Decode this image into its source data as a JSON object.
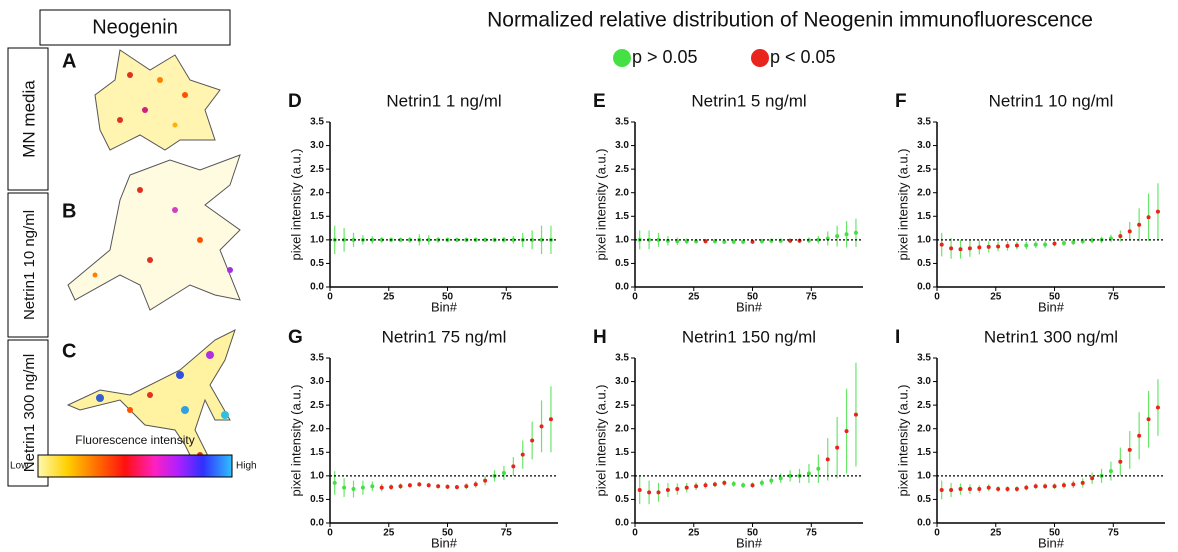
{
  "figure": {
    "title": "Normalized relative distribution of Neogenin immunofluorescence",
    "legend": [
      {
        "label": "p > 0.05",
        "color": "#44e044"
      },
      {
        "label": "p < 0.05",
        "color": "#e8241c"
      }
    ],
    "left": {
      "title": "Neogenin",
      "rows": [
        {
          "label": "MN media",
          "letter": "A"
        },
        {
          "label": "Netrin1 10 ng/ml",
          "letter": "B"
        },
        {
          "label": "Netrin1 300 ng/ml",
          "letter": "C"
        }
      ],
      "colorbar": {
        "title": "Fluorescence intensity",
        "low": "Low",
        "high": "High"
      }
    }
  },
  "chart_data": [
    {
      "type": "scatter",
      "letter": "D",
      "title": "Netrin1 1 ng/ml",
      "xlabel": "Bin#",
      "ylabel": "pixel intensity (a.u.)",
      "xlim": [
        0,
        97
      ],
      "ylim": [
        0,
        3.5
      ],
      "xticks": [
        0,
        25,
        50,
        75
      ],
      "yticks": [
        {
          "value": 0,
          "label": "0.0"
        },
        {
          "value": 0.5,
          "label": "0.5"
        },
        {
          "value": 1,
          "label": "1.0"
        },
        {
          "value": 1.5,
          "label": "1.5"
        },
        {
          "value": 2,
          "label": "2.0"
        },
        {
          "value": 2.5,
          "label": "2.5"
        },
        {
          "value": 3,
          "label": "3.0"
        },
        {
          "value": 3.5,
          "label": "3.5"
        }
      ],
      "hline": 1,
      "x": [
        2,
        6,
        10,
        14,
        18,
        22,
        26,
        30,
        34,
        38,
        42,
        46,
        50,
        54,
        58,
        62,
        66,
        70,
        74,
        78,
        82,
        86,
        90,
        94
      ],
      "values": [
        1,
        1,
        1,
        1,
        1,
        1,
        1,
        1,
        1,
        1,
        1,
        1,
        1,
        1,
        1,
        1,
        1,
        1,
        1,
        1,
        1,
        1,
        1,
        1
      ],
      "errors": [
        0.3,
        0.25,
        0.15,
        0.1,
        0.08,
        0.06,
        0.05,
        0.05,
        0.06,
        0.12,
        0.1,
        0.06,
        0.05,
        0.05,
        0.05,
        0.05,
        0.05,
        0.05,
        0.06,
        0.08,
        0.15,
        0.2,
        0.3,
        0.3
      ],
      "significant": [
        false,
        false,
        false,
        false,
        false,
        false,
        false,
        false,
        false,
        false,
        false,
        false,
        false,
        false,
        false,
        false,
        false,
        false,
        false,
        false,
        false,
        false,
        false,
        false
      ]
    },
    {
      "type": "scatter",
      "letter": "E",
      "title": "Netrin1 5 ng/ml",
      "xlabel": "Bin#",
      "ylabel": "pixel intensity (a.u.)",
      "xlim": [
        0,
        97
      ],
      "ylim": [
        0,
        3.5
      ],
      "xticks": [
        0,
        25,
        50,
        75
      ],
      "yticks": [
        {
          "value": 0,
          "label": "0.0"
        },
        {
          "value": 0.5,
          "label": "0.5"
        },
        {
          "value": 1,
          "label": "1.0"
        },
        {
          "value": 1.5,
          "label": "1.5"
        },
        {
          "value": 2,
          "label": "2.0"
        },
        {
          "value": 2.5,
          "label": "2.5"
        },
        {
          "value": 3,
          "label": "3.0"
        },
        {
          "value": 3.5,
          "label": "3.5"
        }
      ],
      "hline": 1,
      "x": [
        2,
        6,
        10,
        14,
        18,
        22,
        26,
        30,
        34,
        38,
        42,
        46,
        50,
        54,
        58,
        62,
        66,
        70,
        74,
        78,
        82,
        86,
        90,
        94
      ],
      "values": [
        1,
        1,
        1,
        0.98,
        0.97,
        0.97,
        0.97,
        0.97,
        0.97,
        0.96,
        0.96,
        0.96,
        0.96,
        0.97,
        0.98,
        0.98,
        0.98,
        0.98,
        0.99,
        1.0,
        1.03,
        1.08,
        1.12,
        1.15
      ],
      "errors": [
        0.2,
        0.2,
        0.15,
        0.1,
        0.08,
        0.06,
        0.05,
        0.05,
        0.05,
        0.05,
        0.05,
        0.05,
        0.05,
        0.05,
        0.05,
        0.05,
        0.05,
        0.05,
        0.06,
        0.08,
        0.15,
        0.22,
        0.28,
        0.3
      ],
      "significant": [
        false,
        false,
        false,
        false,
        false,
        false,
        false,
        true,
        false,
        false,
        false,
        false,
        true,
        false,
        false,
        false,
        true,
        true,
        false,
        false,
        false,
        false,
        false,
        false
      ]
    },
    {
      "type": "scatter",
      "letter": "F",
      "title": "Netrin1 10 ng/ml",
      "xlabel": "Bin#",
      "ylabel": "pixel intensity (a.u.)",
      "xlim": [
        0,
        97
      ],
      "ylim": [
        0,
        3.5
      ],
      "xticks": [
        0,
        25,
        50,
        75
      ],
      "yticks": [
        {
          "value": 0,
          "label": "0.0"
        },
        {
          "value": 0.5,
          "label": "0.5"
        },
        {
          "value": 1,
          "label": "1.0"
        },
        {
          "value": 1.5,
          "label": "1.5"
        },
        {
          "value": 2,
          "label": "2.0"
        },
        {
          "value": 2.5,
          "label": "2.5"
        },
        {
          "value": 3,
          "label": "3.0"
        },
        {
          "value": 3.5,
          "label": "3.5"
        }
      ],
      "hline": 1,
      "x": [
        2,
        6,
        10,
        14,
        18,
        22,
        26,
        30,
        34,
        38,
        42,
        46,
        50,
        54,
        58,
        62,
        66,
        70,
        74,
        78,
        82,
        86,
        90,
        94
      ],
      "values": [
        0.9,
        0.82,
        0.8,
        0.82,
        0.84,
        0.85,
        0.86,
        0.87,
        0.88,
        0.88,
        0.9,
        0.9,
        0.92,
        0.93,
        0.95,
        0.97,
        0.99,
        1.0,
        1.03,
        1.08,
        1.18,
        1.32,
        1.48,
        1.6
      ],
      "errors": [
        0.25,
        0.22,
        0.2,
        0.18,
        0.15,
        0.12,
        0.1,
        0.1,
        0.08,
        0.08,
        0.07,
        0.07,
        0.06,
        0.06,
        0.06,
        0.06,
        0.06,
        0.07,
        0.08,
        0.12,
        0.2,
        0.35,
        0.5,
        0.6
      ],
      "significant": [
        true,
        true,
        true,
        true,
        true,
        true,
        true,
        true,
        true,
        false,
        false,
        false,
        true,
        false,
        false,
        false,
        false,
        false,
        false,
        true,
        true,
        true,
        true,
        true
      ]
    },
    {
      "type": "scatter",
      "letter": "G",
      "title": "Netrin1 75 ng/ml",
      "xlabel": "Bin#",
      "ylabel": "pixel intensity (a.u.)",
      "xlim": [
        0,
        97
      ],
      "ylim": [
        0,
        3.5
      ],
      "xticks": [
        0,
        25,
        50,
        75
      ],
      "yticks": [
        {
          "value": 0,
          "label": "0.0"
        },
        {
          "value": 0.5,
          "label": "0.5"
        },
        {
          "value": 1,
          "label": "1.0"
        },
        {
          "value": 1.5,
          "label": "1.5"
        },
        {
          "value": 2,
          "label": "2.0"
        },
        {
          "value": 2.5,
          "label": "2.5"
        },
        {
          "value": 3,
          "label": "3.0"
        },
        {
          "value": 3.5,
          "label": "3.5"
        }
      ],
      "hline": 1,
      "x": [
        2,
        6,
        10,
        14,
        18,
        22,
        26,
        30,
        34,
        38,
        42,
        46,
        50,
        54,
        58,
        62,
        66,
        70,
        74,
        78,
        82,
        86,
        90,
        94
      ],
      "values": [
        0.85,
        0.75,
        0.72,
        0.75,
        0.78,
        0.75,
        0.76,
        0.78,
        0.8,
        0.82,
        0.8,
        0.78,
        0.77,
        0.76,
        0.78,
        0.82,
        0.9,
        1.0,
        1.06,
        1.2,
        1.45,
        1.75,
        2.05,
        2.2
      ],
      "errors": [
        0.25,
        0.2,
        0.18,
        0.15,
        0.1,
        0.08,
        0.06,
        0.06,
        0.05,
        0.05,
        0.05,
        0.05,
        0.05,
        0.05,
        0.06,
        0.07,
        0.1,
        0.12,
        0.15,
        0.2,
        0.3,
        0.4,
        0.55,
        0.7
      ],
      "significant": [
        false,
        false,
        false,
        false,
        false,
        true,
        true,
        true,
        true,
        true,
        true,
        true,
        true,
        true,
        true,
        true,
        true,
        false,
        false,
        true,
        true,
        true,
        true,
        true
      ]
    },
    {
      "type": "scatter",
      "letter": "H",
      "title": "Netrin1 150 ng/ml",
      "xlabel": "Bin#",
      "ylabel": "pixel intensity (a.u.)",
      "xlim": [
        0,
        97
      ],
      "ylim": [
        0,
        3.5
      ],
      "xticks": [
        0,
        25,
        50,
        75
      ],
      "yticks": [
        {
          "value": 0,
          "label": "0.0"
        },
        {
          "value": 0.5,
          "label": "0.5"
        },
        {
          "value": 1,
          "label": "1.0"
        },
        {
          "value": 1.5,
          "label": "1.5"
        },
        {
          "value": 2,
          "label": "2.0"
        },
        {
          "value": 2.5,
          "label": "2.5"
        },
        {
          "value": 3,
          "label": "3.0"
        },
        {
          "value": 3.5,
          "label": "3.5"
        }
      ],
      "hline": 1,
      "x": [
        2,
        6,
        10,
        14,
        18,
        22,
        26,
        30,
        34,
        38,
        42,
        46,
        50,
        54,
        58,
        62,
        66,
        70,
        74,
        78,
        82,
        86,
        90,
        94
      ],
      "values": [
        0.7,
        0.65,
        0.65,
        0.7,
        0.72,
        0.75,
        0.78,
        0.8,
        0.82,
        0.85,
        0.83,
        0.8,
        0.8,
        0.85,
        0.9,
        0.95,
        1.0,
        1.0,
        1.05,
        1.15,
        1.35,
        1.6,
        1.95,
        2.3
      ],
      "errors": [
        0.3,
        0.25,
        0.2,
        0.15,
        0.12,
        0.1,
        0.08,
        0.07,
        0.06,
        0.06,
        0.06,
        0.06,
        0.06,
        0.07,
        0.08,
        0.1,
        0.12,
        0.15,
        0.2,
        0.3,
        0.45,
        0.65,
        0.9,
        1.1
      ],
      "significant": [
        true,
        true,
        true,
        true,
        true,
        true,
        true,
        true,
        true,
        true,
        false,
        false,
        true,
        false,
        false,
        false,
        false,
        false,
        false,
        false,
        true,
        true,
        true,
        true
      ]
    },
    {
      "type": "scatter",
      "letter": "I",
      "title": "Netrin1 300 ng/ml",
      "xlabel": "Bin#",
      "ylabel": "pixel intensity (a.u.)",
      "xlim": [
        0,
        97
      ],
      "ylim": [
        0,
        3.5
      ],
      "xticks": [
        0,
        25,
        50,
        75
      ],
      "yticks": [
        {
          "value": 0,
          "label": "0.0"
        },
        {
          "value": 0.5,
          "label": "0.5"
        },
        {
          "value": 1,
          "label": "1.0"
        },
        {
          "value": 1.5,
          "label": "1.5"
        },
        {
          "value": 2,
          "label": "2.0"
        },
        {
          "value": 2.5,
          "label": "2.5"
        },
        {
          "value": 3,
          "label": "3.0"
        },
        {
          "value": 3.5,
          "label": "3.5"
        }
      ],
      "hline": 1,
      "x": [
        2,
        6,
        10,
        14,
        18,
        22,
        26,
        30,
        34,
        38,
        42,
        46,
        50,
        54,
        58,
        62,
        66,
        70,
        74,
        78,
        82,
        86,
        90,
        94
      ],
      "values": [
        0.7,
        0.7,
        0.72,
        0.72,
        0.72,
        0.75,
        0.72,
        0.72,
        0.72,
        0.75,
        0.78,
        0.78,
        0.78,
        0.8,
        0.82,
        0.85,
        0.95,
        1.0,
        1.1,
        1.3,
        1.55,
        1.85,
        2.2,
        2.45
      ],
      "errors": [
        0.2,
        0.15,
        0.12,
        0.1,
        0.08,
        0.07,
        0.06,
        0.06,
        0.06,
        0.06,
        0.06,
        0.06,
        0.06,
        0.07,
        0.08,
        0.1,
        0.12,
        0.15,
        0.2,
        0.3,
        0.4,
        0.5,
        0.6,
        0.6
      ],
      "significant": [
        true,
        true,
        true,
        true,
        true,
        true,
        true,
        true,
        true,
        true,
        true,
        true,
        true,
        true,
        true,
        true,
        true,
        false,
        false,
        true,
        true,
        true,
        true,
        true
      ]
    }
  ]
}
